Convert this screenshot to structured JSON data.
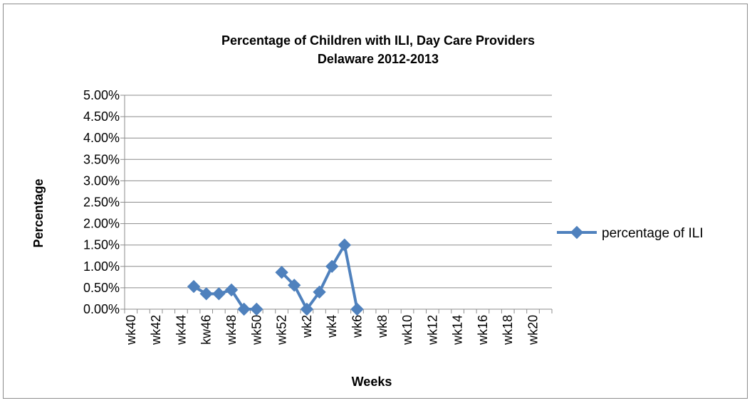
{
  "chart_data": {
    "type": "line",
    "title": "Percentage of Children with ILI, Day Care Providers",
    "subtitle": "Delaware 2012-2013",
    "xlabel": "Weeks",
    "ylabel": "Percentage",
    "ylim": [
      0,
      0.05
    ],
    "y_ticks": [
      "0.00%",
      "0.50%",
      "1.00%",
      "1.50%",
      "2.00%",
      "2.50%",
      "3.00%",
      "3.50%",
      "4.00%",
      "4.50%",
      "5.00%"
    ],
    "x_tick_labels": [
      "wk40",
      "wk42",
      "wk44",
      "kw46",
      "wk48",
      "wk50",
      "wk52",
      "wk2",
      "wk4",
      "wk6",
      "wk8",
      "wk10",
      "wk12",
      "wk14",
      "wk16",
      "wk18",
      "wk20"
    ],
    "category_count": 34,
    "grid": true,
    "legend_position": "right",
    "color": "#4f81bd",
    "series": [
      {
        "name": "percentage of ILI",
        "values": [
          null,
          null,
          null,
          null,
          null,
          0.0053,
          0.0036,
          0.0036,
          0.0045,
          0.0,
          0.0,
          null,
          0.0086,
          0.0056,
          0.0,
          0.004,
          0.01,
          0.015,
          0.0,
          null,
          null,
          null,
          null,
          null,
          null,
          null,
          null,
          null,
          null,
          null,
          null,
          null,
          null,
          null
        ]
      }
    ]
  }
}
